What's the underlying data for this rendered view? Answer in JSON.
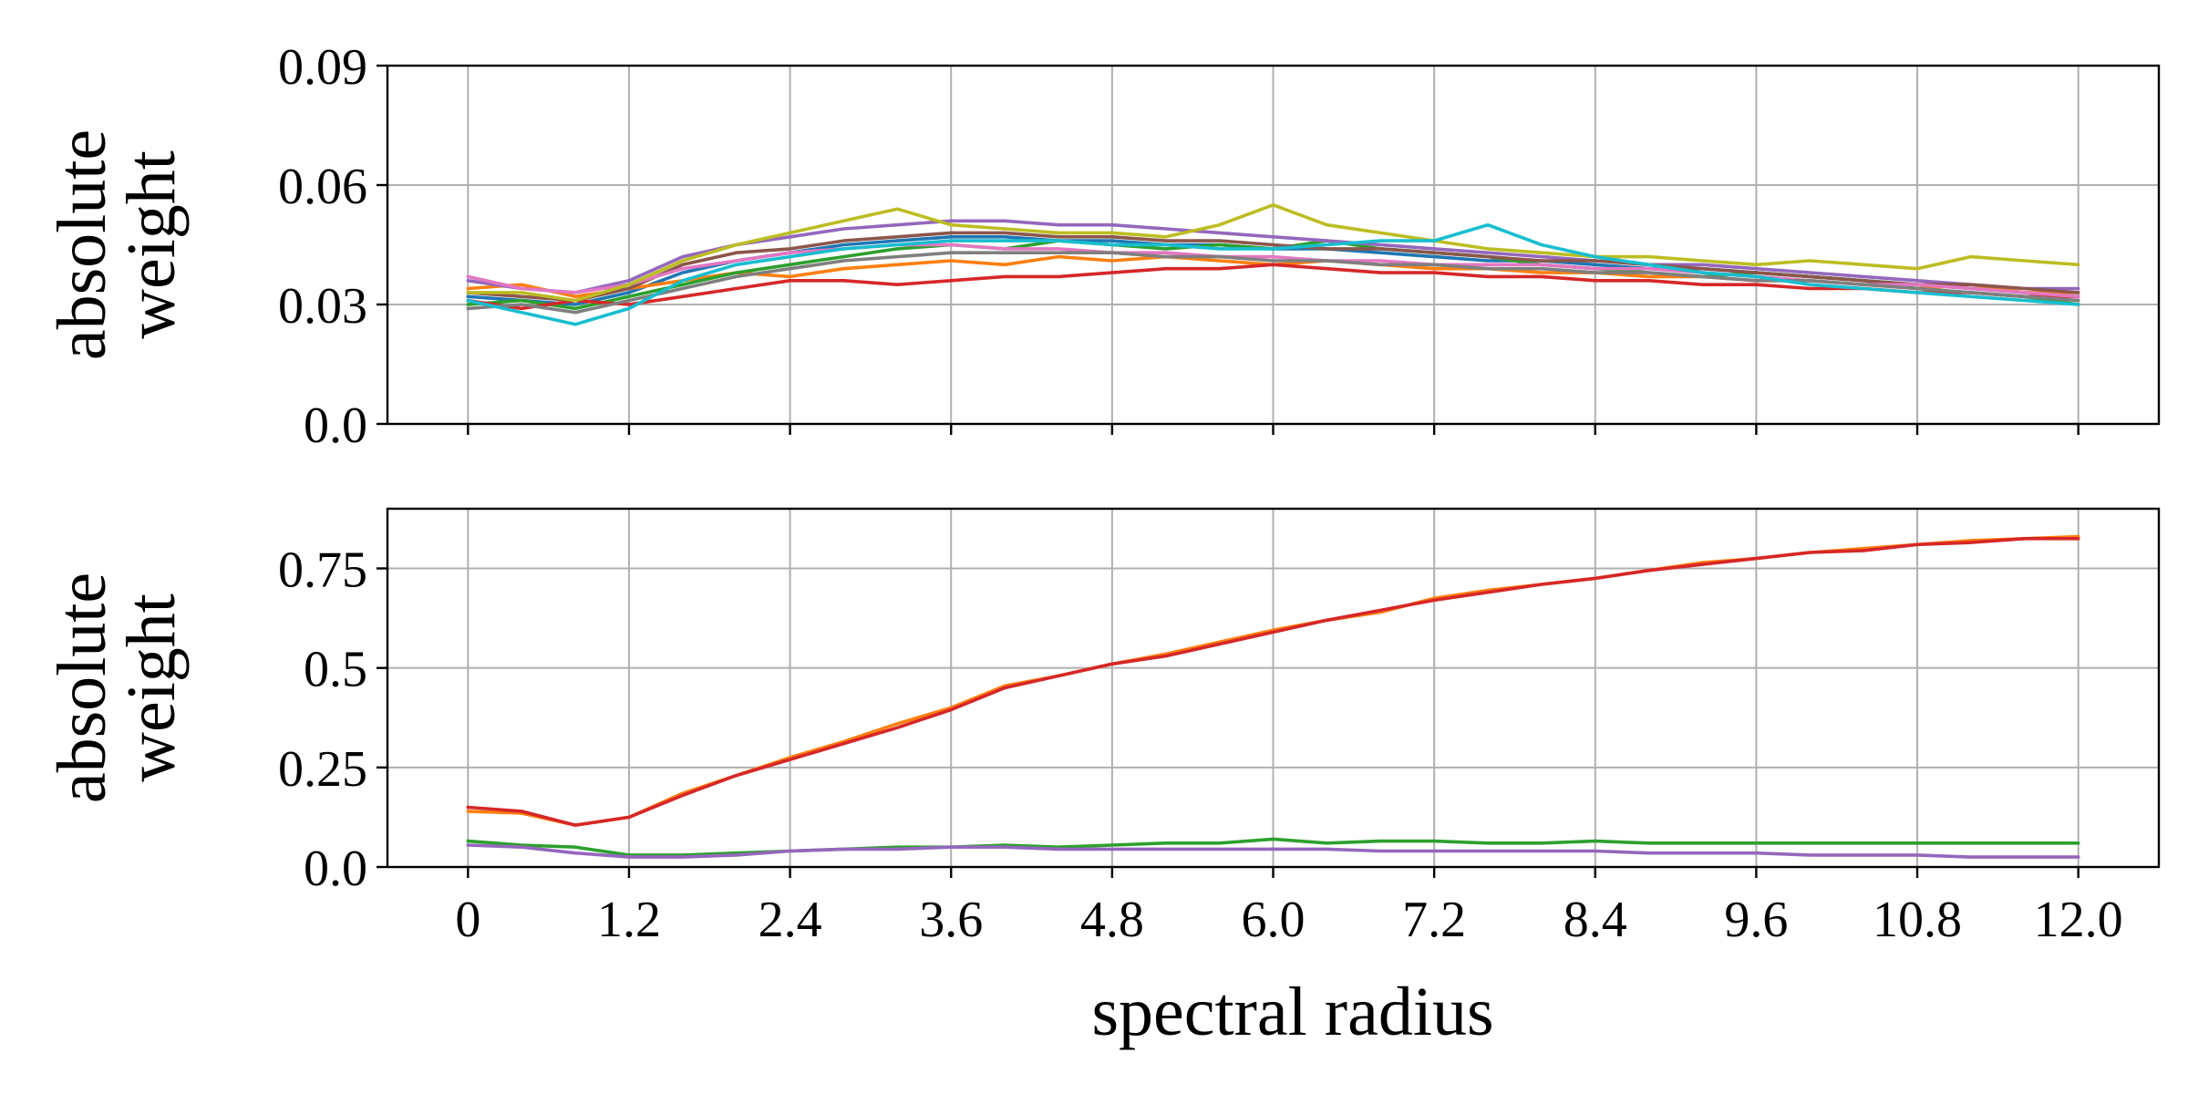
{
  "chart_data": [
    {
      "type": "line",
      "title": "",
      "ylabel": "absolute weight",
      "xlabel": "",
      "xlim": [
        -0.6,
        12.6
      ],
      "ylim": [
        0.0,
        0.09
      ],
      "xticks": [
        0,
        1.2,
        2.4,
        3.6,
        4.8,
        6.0,
        7.2,
        8.4,
        9.6,
        10.8,
        12.0
      ],
      "xtick_labels_visible": false,
      "yticks": [
        0.0,
        0.03,
        0.06,
        0.09
      ],
      "ytick_labels": [
        "0.0",
        "0.03",
        "0.06",
        "0.09"
      ],
      "grid": true,
      "legend": "none",
      "x": [
        0,
        0.4,
        0.8,
        1.2,
        1.6,
        2.0,
        2.4,
        2.8,
        3.2,
        3.6,
        4.0,
        4.4,
        4.8,
        5.2,
        5.6,
        6.0,
        6.4,
        6.8,
        7.2,
        7.6,
        8.0,
        8.4,
        8.8,
        9.2,
        9.6,
        10.0,
        10.4,
        10.8,
        11.2,
        11.6,
        12.0
      ],
      "series": [
        {
          "color": "#1f77b4",
          "values": [
            0.032,
            0.031,
            0.03,
            0.033,
            0.038,
            0.041,
            0.043,
            0.045,
            0.046,
            0.047,
            0.047,
            0.046,
            0.046,
            0.045,
            0.045,
            0.044,
            0.044,
            0.043,
            0.042,
            0.041,
            0.041,
            0.04,
            0.039,
            0.039,
            0.038,
            0.037,
            0.036,
            0.035,
            0.034,
            0.033,
            0.032
          ]
        },
        {
          "color": "#ff7f0e",
          "values": [
            0.034,
            0.035,
            0.032,
            0.034,
            0.036,
            0.038,
            0.037,
            0.039,
            0.04,
            0.041,
            0.04,
            0.042,
            0.041,
            0.042,
            0.041,
            0.04,
            0.041,
            0.04,
            0.039,
            0.039,
            0.038,
            0.038,
            0.037,
            0.037,
            0.036,
            0.036,
            0.035,
            0.034,
            0.035,
            0.033,
            0.033
          ]
        },
        {
          "color": "#2ca02c",
          "values": [
            0.03,
            0.031,
            0.029,
            0.032,
            0.035,
            0.038,
            0.04,
            0.042,
            0.044,
            0.045,
            0.044,
            0.046,
            0.045,
            0.044,
            0.045,
            0.044,
            0.046,
            0.044,
            0.043,
            0.042,
            0.04,
            0.039,
            0.038,
            0.037,
            0.038,
            0.037,
            0.036,
            0.034,
            0.033,
            0.032,
            0.03
          ]
        },
        {
          "color": "#d62728",
          "values": [
            0.031,
            0.029,
            0.031,
            0.03,
            0.032,
            0.034,
            0.036,
            0.036,
            0.035,
            0.036,
            0.037,
            0.037,
            0.038,
            0.039,
            0.039,
            0.04,
            0.039,
            0.038,
            0.038,
            0.037,
            0.037,
            0.036,
            0.036,
            0.035,
            0.035,
            0.034,
            0.034,
            0.033,
            0.033,
            0.032,
            0.032
          ]
        },
        {
          "color": "#9467bd",
          "values": [
            0.036,
            0.034,
            0.033,
            0.036,
            0.042,
            0.045,
            0.047,
            0.049,
            0.05,
            0.051,
            0.051,
            0.05,
            0.05,
            0.049,
            0.048,
            0.047,
            0.046,
            0.045,
            0.044,
            0.043,
            0.042,
            0.041,
            0.04,
            0.04,
            0.039,
            0.038,
            0.037,
            0.036,
            0.035,
            0.034,
            0.034
          ]
        },
        {
          "color": "#8c564b",
          "values": [
            0.033,
            0.032,
            0.031,
            0.034,
            0.04,
            0.043,
            0.044,
            0.046,
            0.047,
            0.048,
            0.048,
            0.047,
            0.047,
            0.046,
            0.046,
            0.045,
            0.044,
            0.044,
            0.043,
            0.042,
            0.041,
            0.041,
            0.04,
            0.039,
            0.038,
            0.037,
            0.036,
            0.035,
            0.035,
            0.034,
            0.033
          ]
        },
        {
          "color": "#e377c2",
          "values": [
            0.037,
            0.034,
            0.033,
            0.035,
            0.039,
            0.041,
            0.043,
            0.044,
            0.045,
            0.045,
            0.044,
            0.044,
            0.043,
            0.043,
            0.042,
            0.042,
            0.041,
            0.041,
            0.04,
            0.04,
            0.04,
            0.039,
            0.039,
            0.038,
            0.037,
            0.036,
            0.035,
            0.035,
            0.034,
            0.033,
            0.032
          ]
        },
        {
          "color": "#7f7f7f",
          "values": [
            0.029,
            0.03,
            0.028,
            0.031,
            0.034,
            0.037,
            0.039,
            0.041,
            0.042,
            0.043,
            0.043,
            0.043,
            0.043,
            0.042,
            0.042,
            0.041,
            0.041,
            0.04,
            0.04,
            0.039,
            0.039,
            0.038,
            0.038,
            0.037,
            0.036,
            0.036,
            0.035,
            0.034,
            0.033,
            0.032,
            0.031
          ]
        },
        {
          "color": "#bcbd22",
          "values": [
            0.033,
            0.033,
            0.031,
            0.035,
            0.041,
            0.045,
            0.048,
            0.051,
            0.054,
            0.05,
            0.049,
            0.048,
            0.048,
            0.047,
            0.05,
            0.055,
            0.05,
            0.048,
            0.046,
            0.044,
            0.043,
            0.042,
            0.042,
            0.041,
            0.04,
            0.041,
            0.04,
            0.039,
            0.042,
            0.041,
            0.04
          ]
        },
        {
          "color": "#17becf",
          "values": [
            0.031,
            0.028,
            0.025,
            0.029,
            0.036,
            0.04,
            0.042,
            0.044,
            0.045,
            0.046,
            0.046,
            0.046,
            0.045,
            0.045,
            0.044,
            0.044,
            0.045,
            0.046,
            0.046,
            0.05,
            0.045,
            0.042,
            0.04,
            0.038,
            0.037,
            0.035,
            0.034,
            0.033,
            0.032,
            0.031,
            0.03
          ]
        }
      ]
    },
    {
      "type": "line",
      "title": "",
      "ylabel": "absolute weight",
      "xlabel": "spectral radius",
      "xlim": [
        -0.6,
        12.6
      ],
      "ylim": [
        0.0,
        0.9
      ],
      "xticks": [
        0,
        1.2,
        2.4,
        3.6,
        4.8,
        6.0,
        7.2,
        8.4,
        9.6,
        10.8,
        12.0
      ],
      "xtick_labels": [
        "0",
        "1.2",
        "2.4",
        "3.6",
        "4.8",
        "6.0",
        "7.2",
        "8.4",
        "9.6",
        "10.8",
        "12.0"
      ],
      "yticks": [
        0.0,
        0.25,
        0.5,
        0.75
      ],
      "ytick_labels": [
        "0.0",
        "0.25",
        "0.5",
        "0.75"
      ],
      "grid": true,
      "legend": "none",
      "x": [
        0,
        0.4,
        0.8,
        1.2,
        1.6,
        2.0,
        2.4,
        2.8,
        3.2,
        3.6,
        4.0,
        4.4,
        4.8,
        5.2,
        5.6,
        6.0,
        6.4,
        6.8,
        7.2,
        7.6,
        8.0,
        8.4,
        8.8,
        9.2,
        9.6,
        10.0,
        10.4,
        10.8,
        11.2,
        11.6,
        12.0
      ],
      "series": [
        {
          "color": "#ff7f0e",
          "values": [
            0.14,
            0.135,
            0.105,
            0.125,
            0.185,
            0.23,
            0.275,
            0.315,
            0.36,
            0.4,
            0.455,
            0.48,
            0.51,
            0.535,
            0.565,
            0.595,
            0.62,
            0.64,
            0.675,
            0.695,
            0.71,
            0.725,
            0.745,
            0.765,
            0.775,
            0.79,
            0.8,
            0.81,
            0.82,
            0.825,
            0.83
          ]
        },
        {
          "color": "#d62728",
          "values": [
            0.15,
            0.14,
            0.105,
            0.125,
            0.18,
            0.23,
            0.27,
            0.31,
            0.35,
            0.395,
            0.45,
            0.48,
            0.51,
            0.53,
            0.56,
            0.59,
            0.62,
            0.645,
            0.67,
            0.69,
            0.71,
            0.725,
            0.745,
            0.76,
            0.775,
            0.79,
            0.795,
            0.81,
            0.815,
            0.825,
            0.825
          ]
        },
        {
          "color": "#2ca02c",
          "values": [
            0.065,
            0.055,
            0.05,
            0.03,
            0.03,
            0.035,
            0.04,
            0.045,
            0.05,
            0.05,
            0.055,
            0.05,
            0.055,
            0.06,
            0.06,
            0.07,
            0.06,
            0.065,
            0.065,
            0.06,
            0.06,
            0.065,
            0.06,
            0.06,
            0.06,
            0.06,
            0.06,
            0.06,
            0.06,
            0.06,
            0.06
          ]
        },
        {
          "color": "#9467bd",
          "values": [
            0.055,
            0.05,
            0.035,
            0.025,
            0.025,
            0.03,
            0.04,
            0.045,
            0.045,
            0.05,
            0.05,
            0.045,
            0.045,
            0.045,
            0.045,
            0.045,
            0.045,
            0.04,
            0.04,
            0.04,
            0.04,
            0.04,
            0.035,
            0.035,
            0.035,
            0.03,
            0.03,
            0.03,
            0.025,
            0.025,
            0.025
          ]
        }
      ]
    }
  ]
}
